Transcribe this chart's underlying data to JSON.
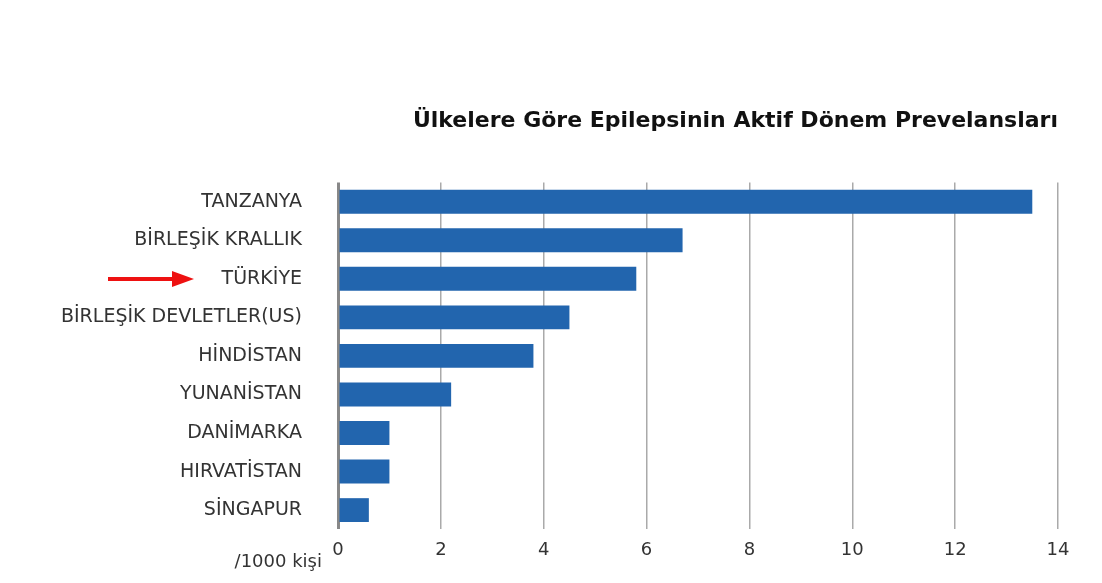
{
  "chart_data": {
    "type": "bar",
    "orientation": "horizontal",
    "title": "Ülkelere Göre Epilepsinin Aktif Dönem Prevelansları",
    "xlabel": "/1000 kişi",
    "categories": [
      "TANZANYA",
      "BİRLEŞİK KRALLIK",
      "TÜRKİYE",
      "BİRLEŞİK DEVLETLER(US)",
      "HİNDİSTAN",
      "YUNANİSTAN",
      "DANİMARKA",
      "HIRVATİSTAN",
      "SİNGAPUR"
    ],
    "values": [
      13.5,
      6.7,
      5.8,
      4.5,
      3.8,
      2.2,
      1.0,
      1.0,
      0.6
    ],
    "color": "#2265ae",
    "xlim": [
      0,
      14
    ],
    "xticks": [
      0,
      2,
      4,
      6,
      8,
      10,
      12,
      14
    ],
    "grid": "x",
    "legend": false
  }
}
